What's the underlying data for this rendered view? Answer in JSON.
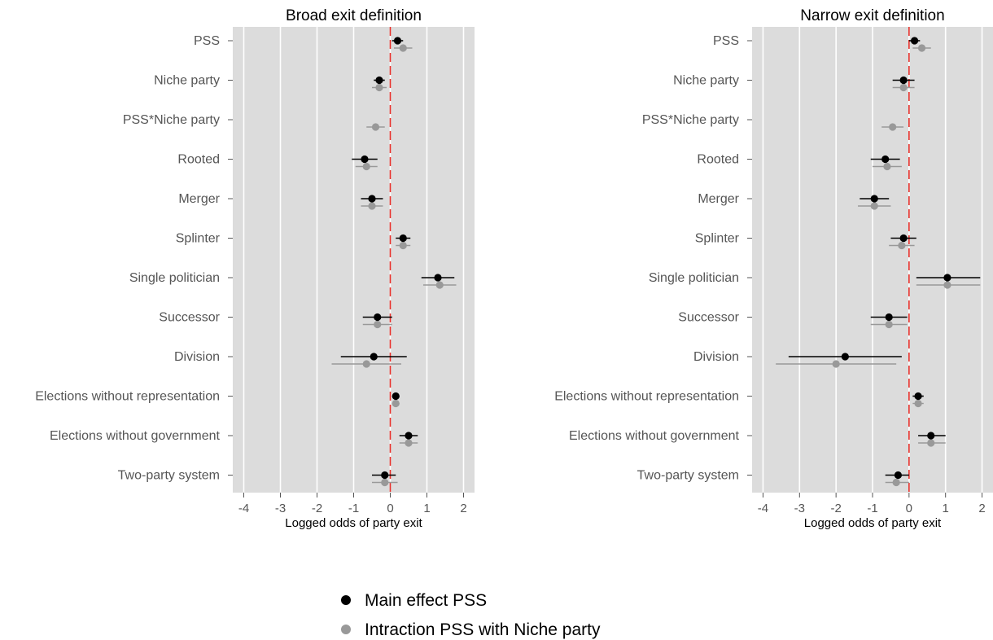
{
  "legend": {
    "entries": [
      {
        "label": "Main effect PSS",
        "color": "#000000"
      },
      {
        "label": "Intraction PSS with Niche party",
        "color": "#999999"
      }
    ]
  },
  "chart_data": [
    {
      "type": "scatter",
      "subtype": "coefficient-plot",
      "title": "Broad exit definition",
      "xlabel": "Logged odds of party exit",
      "xlim": [
        -4.3,
        2.3
      ],
      "xticks": [
        -4,
        -3,
        -2,
        -1,
        0,
        1,
        2
      ],
      "reference_line": 0,
      "grid": "vertical",
      "categories": [
        "PSS",
        "Niche party",
        "PSS*Niche party",
        "Rooted",
        "Merger",
        "Splinter",
        "Single politician",
        "Successor",
        "Division",
        "Elections without representation",
        "Elections without government",
        "Two-party system"
      ],
      "series": [
        {
          "name": "Main effect PSS",
          "color": "#000000",
          "values": [
            0.2,
            -0.3,
            null,
            -0.7,
            -0.5,
            0.35,
            1.3,
            -0.35,
            -0.45,
            0.15,
            0.5,
            -0.15
          ],
          "lower": [
            0.05,
            -0.45,
            null,
            -1.05,
            -0.8,
            0.15,
            0.85,
            -0.75,
            -1.35,
            0.05,
            0.25,
            -0.5
          ],
          "upper": [
            0.35,
            -0.15,
            null,
            -0.35,
            -0.2,
            0.55,
            1.75,
            0.05,
            0.45,
            0.25,
            0.75,
            0.15
          ]
        },
        {
          "name": "Intraction PSS with Niche party",
          "color": "#999999",
          "values": [
            0.35,
            -0.3,
            -0.4,
            -0.65,
            -0.5,
            0.35,
            1.35,
            -0.35,
            -0.65,
            0.15,
            0.5,
            -0.15
          ],
          "lower": [
            0.1,
            -0.5,
            -0.65,
            -0.95,
            -0.8,
            0.15,
            0.9,
            -0.75,
            -1.6,
            0.05,
            0.25,
            -0.5
          ],
          "upper": [
            0.6,
            -0.1,
            -0.15,
            -0.35,
            -0.2,
            0.55,
            1.8,
            0.05,
            0.3,
            0.25,
            0.75,
            0.2
          ]
        }
      ]
    },
    {
      "type": "scatter",
      "subtype": "coefficient-plot",
      "title": "Narrow exit definition",
      "xlabel": "Logged odds of party exit",
      "xlim": [
        -4.3,
        2.3
      ],
      "xticks": [
        -4,
        -3,
        -2,
        -1,
        0,
        1,
        2
      ],
      "reference_line": 0,
      "grid": "vertical",
      "categories": [
        "PSS",
        "Niche party",
        "PSS*Niche party",
        "Rooted",
        "Merger",
        "Splinter",
        "Single politician",
        "Successor",
        "Division",
        "Elections without representation",
        "Elections without government",
        "Two-party system"
      ],
      "series": [
        {
          "name": "Main effect PSS",
          "color": "#000000",
          "values": [
            0.15,
            -0.15,
            null,
            -0.65,
            -0.95,
            -0.15,
            1.05,
            -0.55,
            -1.75,
            0.25,
            0.6,
            -0.3
          ],
          "lower": [
            0.0,
            -0.45,
            null,
            -1.05,
            -1.35,
            -0.5,
            0.2,
            -1.05,
            -3.3,
            0.1,
            0.25,
            -0.65
          ],
          "upper": [
            0.3,
            0.15,
            null,
            -0.25,
            -0.55,
            0.2,
            1.95,
            -0.05,
            -0.2,
            0.4,
            1.0,
            0.0
          ]
        },
        {
          "name": "Intraction PSS with Niche party",
          "color": "#999999",
          "values": [
            0.35,
            -0.15,
            -0.45,
            -0.6,
            -0.95,
            -0.2,
            1.05,
            -0.55,
            -2.0,
            0.25,
            0.6,
            -0.35
          ],
          "lower": [
            0.1,
            -0.45,
            -0.75,
            -1.0,
            -1.4,
            -0.55,
            0.2,
            -1.05,
            -3.65,
            0.1,
            0.25,
            -0.65
          ],
          "upper": [
            0.6,
            0.15,
            -0.15,
            -0.2,
            -0.5,
            0.15,
            1.95,
            -0.05,
            -0.35,
            0.4,
            1.0,
            0.0
          ]
        }
      ]
    }
  ]
}
